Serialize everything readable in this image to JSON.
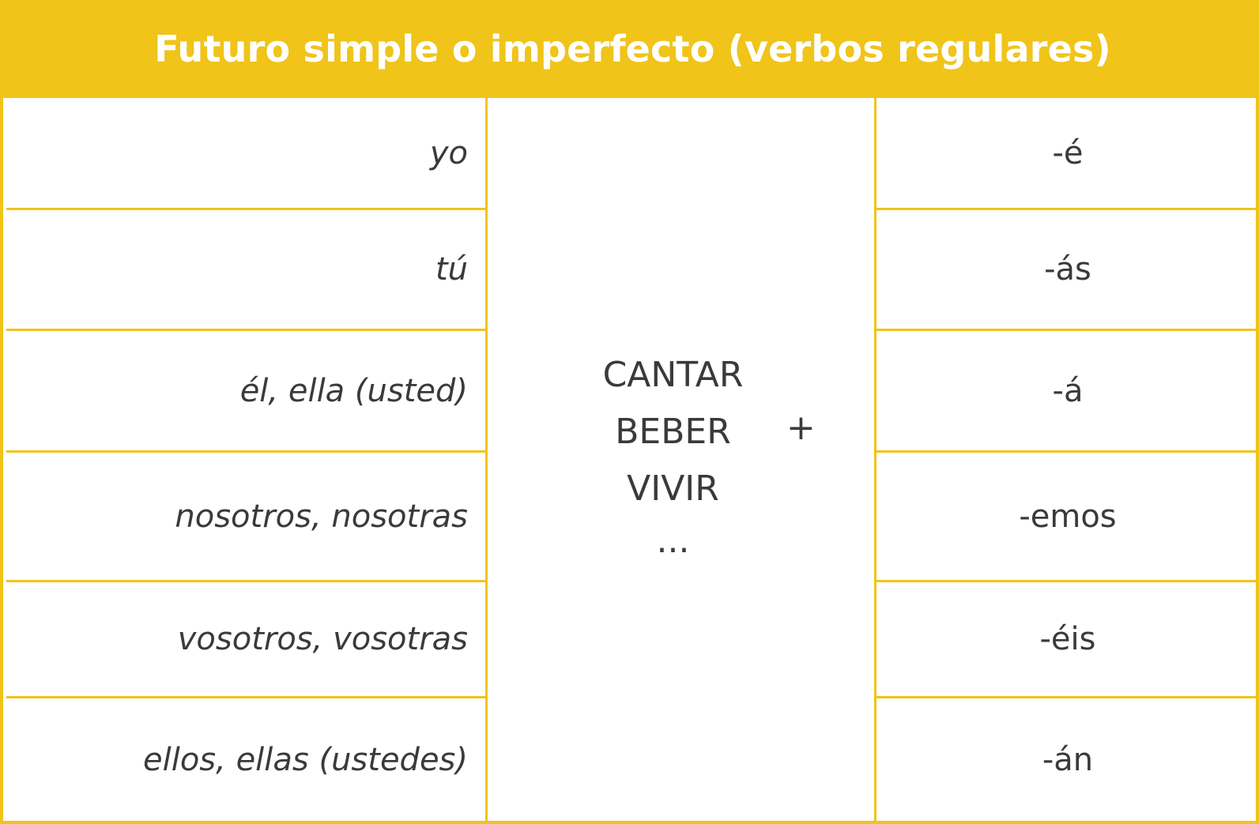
{
  "title": "Futuro simple o imperfecto (verbos regulares)",
  "rows": [
    {
      "pronoun": "yo",
      "ending": "-é"
    },
    {
      "pronoun": "tú",
      "ending": "-ás"
    },
    {
      "pronoun": "él, ella (usted)",
      "ending": "-á"
    },
    {
      "pronoun": "nosotros, nosotras",
      "ending": "-emos"
    },
    {
      "pronoun": "vosotros, vosotras",
      "ending": "-éis"
    },
    {
      "pronoun": "ellos, ellas (ustedes)",
      "ending": "-án"
    }
  ],
  "verbs": [
    "CANTAR",
    "BEBER",
    "VIVIR",
    "..."
  ],
  "operator": "+",
  "colors": {
    "accent": "#F0C419",
    "text": "#3a3a3a"
  }
}
